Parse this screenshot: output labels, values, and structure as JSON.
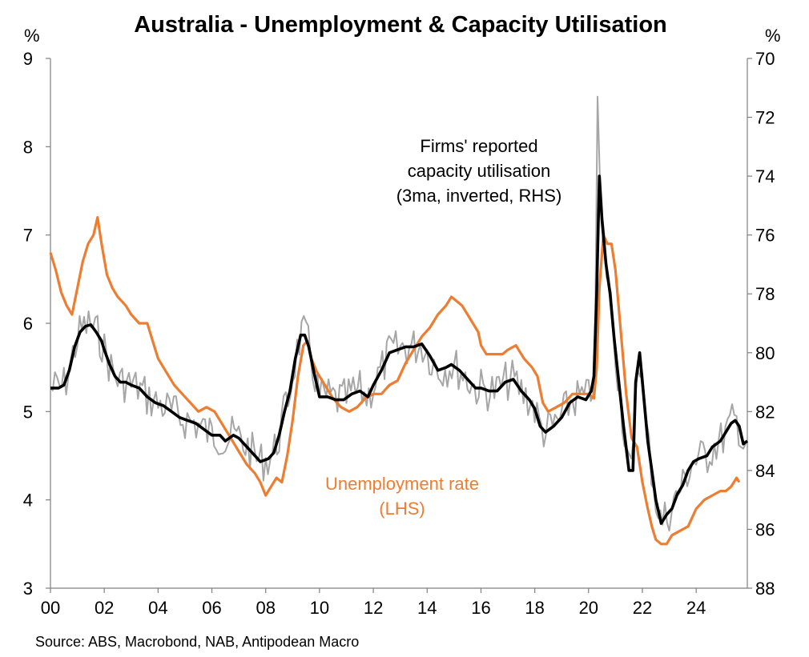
{
  "chart_data": {
    "type": "line",
    "title": "Australia - Unemployment & Capacity Utilisation",
    "left_unit": "%",
    "right_unit": "%",
    "source": "Source: ABS, Macrobond, NAB, Antipodean Macro",
    "x_ticks": [
      "00",
      "02",
      "04",
      "06",
      "08",
      "10",
      "12",
      "14",
      "16",
      "18",
      "20",
      "22",
      "24"
    ],
    "x_range": [
      2000,
      2025.9
    ],
    "left_axis": {
      "ylim": [
        3,
        9
      ],
      "ticks": [
        3,
        4,
        5,
        6,
        7,
        8,
        9
      ]
    },
    "right_axis": {
      "ylim": [
        70,
        88
      ],
      "inverted": true,
      "ticks": [
        70,
        72,
        74,
        76,
        78,
        80,
        82,
        84,
        86,
        88
      ]
    },
    "annotations": {
      "capacity_label": [
        "Firms' reported",
        "capacity utilisation",
        "(3ma, inverted, RHS)"
      ],
      "unemployment_label": [
        "Unemployment rate",
        "(LHS)"
      ]
    },
    "colors": {
      "unemployment": "#ED7D31",
      "capacity_3ma": "#000000",
      "capacity_monthly": "#A6A6A6"
    },
    "series": [
      {
        "name": "Unemployment rate",
        "axis": "left",
        "points": [
          [
            2000.0,
            6.8
          ],
          [
            2000.2,
            6.6
          ],
          [
            2000.4,
            6.35
          ],
          [
            2000.6,
            6.2
          ],
          [
            2000.8,
            6.1
          ],
          [
            2001.0,
            6.4
          ],
          [
            2001.2,
            6.7
          ],
          [
            2001.4,
            6.9
          ],
          [
            2001.6,
            7.0
          ],
          [
            2001.75,
            7.2
          ],
          [
            2001.9,
            6.9
          ],
          [
            2002.1,
            6.55
          ],
          [
            2002.3,
            6.4
          ],
          [
            2002.5,
            6.3
          ],
          [
            2002.8,
            6.2
          ],
          [
            2003.0,
            6.1
          ],
          [
            2003.3,
            6.0
          ],
          [
            2003.6,
            6.0
          ],
          [
            2003.8,
            5.8
          ],
          [
            2004.0,
            5.6
          ],
          [
            2004.3,
            5.45
          ],
          [
            2004.6,
            5.3
          ],
          [
            2004.9,
            5.2
          ],
          [
            2005.2,
            5.1
          ],
          [
            2005.5,
            5.0
          ],
          [
            2005.8,
            5.05
          ],
          [
            2006.1,
            5.0
          ],
          [
            2006.4,
            4.85
          ],
          [
            2006.7,
            4.7
          ],
          [
            2007.0,
            4.55
          ],
          [
            2007.3,
            4.4
          ],
          [
            2007.6,
            4.3
          ],
          [
            2007.8,
            4.2
          ],
          [
            2008.0,
            4.05
          ],
          [
            2008.2,
            4.15
          ],
          [
            2008.4,
            4.25
          ],
          [
            2008.6,
            4.2
          ],
          [
            2008.8,
            4.5
          ],
          [
            2009.0,
            4.9
          ],
          [
            2009.2,
            5.4
          ],
          [
            2009.4,
            5.75
          ],
          [
            2009.55,
            5.8
          ],
          [
            2009.7,
            5.6
          ],
          [
            2009.9,
            5.45
          ],
          [
            2010.2,
            5.3
          ],
          [
            2010.5,
            5.15
          ],
          [
            2010.8,
            5.05
          ],
          [
            2011.1,
            5.0
          ],
          [
            2011.4,
            5.05
          ],
          [
            2011.7,
            5.15
          ],
          [
            2012.0,
            5.2
          ],
          [
            2012.3,
            5.2
          ],
          [
            2012.6,
            5.3
          ],
          [
            2012.9,
            5.35
          ],
          [
            2013.2,
            5.55
          ],
          [
            2013.5,
            5.7
          ],
          [
            2013.8,
            5.85
          ],
          [
            2014.1,
            5.95
          ],
          [
            2014.4,
            6.1
          ],
          [
            2014.7,
            6.2
          ],
          [
            2014.9,
            6.3
          ],
          [
            2015.1,
            6.25
          ],
          [
            2015.3,
            6.2
          ],
          [
            2015.5,
            6.1
          ],
          [
            2015.7,
            6.0
          ],
          [
            2015.9,
            5.9
          ],
          [
            2016.0,
            5.75
          ],
          [
            2016.2,
            5.65
          ],
          [
            2016.5,
            5.65
          ],
          [
            2016.8,
            5.65
          ],
          [
            2017.0,
            5.7
          ],
          [
            2017.3,
            5.75
          ],
          [
            2017.6,
            5.6
          ],
          [
            2017.9,
            5.5
          ],
          [
            2018.1,
            5.4
          ],
          [
            2018.3,
            5.1
          ],
          [
            2018.5,
            5.0
          ],
          [
            2018.8,
            5.05
          ],
          [
            2019.1,
            5.1
          ],
          [
            2019.4,
            5.2
          ],
          [
            2019.7,
            5.2
          ],
          [
            2020.0,
            5.2
          ],
          [
            2020.2,
            5.15
          ],
          [
            2020.3,
            5.5
          ],
          [
            2020.4,
            6.4
          ],
          [
            2020.55,
            7.0
          ],
          [
            2020.7,
            6.9
          ],
          [
            2020.85,
            6.9
          ],
          [
            2021.0,
            6.6
          ],
          [
            2021.2,
            5.9
          ],
          [
            2021.4,
            5.2
          ],
          [
            2021.6,
            4.7
          ],
          [
            2021.8,
            4.6
          ],
          [
            2022.0,
            4.2
          ],
          [
            2022.2,
            3.9
          ],
          [
            2022.35,
            3.7
          ],
          [
            2022.5,
            3.55
          ],
          [
            2022.7,
            3.5
          ],
          [
            2022.9,
            3.5
          ],
          [
            2023.1,
            3.6
          ],
          [
            2023.4,
            3.65
          ],
          [
            2023.7,
            3.7
          ],
          [
            2024.0,
            3.9
          ],
          [
            2024.3,
            4.0
          ],
          [
            2024.6,
            4.05
          ],
          [
            2024.9,
            4.1
          ],
          [
            2025.1,
            4.1
          ],
          [
            2025.3,
            4.15
          ],
          [
            2025.5,
            4.25
          ],
          [
            2025.6,
            4.2
          ]
        ]
      },
      {
        "name": "Firms' reported capacity utilisation (3ma, inverted, RHS)",
        "axis": "right",
        "points": [
          [
            2000.0,
            81.2
          ],
          [
            2000.3,
            81.2
          ],
          [
            2000.5,
            81.1
          ],
          [
            2000.7,
            80.6
          ],
          [
            2000.9,
            79.8
          ],
          [
            2001.1,
            79.3
          ],
          [
            2001.3,
            79.1
          ],
          [
            2001.5,
            79.05
          ],
          [
            2001.7,
            79.3
          ],
          [
            2001.9,
            79.6
          ],
          [
            2002.0,
            79.9
          ],
          [
            2002.2,
            80.4
          ],
          [
            2002.4,
            80.8
          ],
          [
            2002.6,
            81.0
          ],
          [
            2002.8,
            81.0
          ],
          [
            2003.0,
            81.1
          ],
          [
            2003.3,
            81.2
          ],
          [
            2003.6,
            81.5
          ],
          [
            2003.9,
            81.7
          ],
          [
            2004.2,
            81.8
          ],
          [
            2004.5,
            82.0
          ],
          [
            2004.8,
            82.2
          ],
          [
            2005.1,
            82.3
          ],
          [
            2005.4,
            82.4
          ],
          [
            2005.7,
            82.6
          ],
          [
            2006.0,
            82.8
          ],
          [
            2006.3,
            82.8
          ],
          [
            2006.5,
            83.0
          ],
          [
            2006.8,
            82.8
          ],
          [
            2007.0,
            82.9
          ],
          [
            2007.3,
            83.2
          ],
          [
            2007.6,
            83.5
          ],
          [
            2007.8,
            83.7
          ],
          [
            2008.1,
            83.6
          ],
          [
            2008.3,
            83.4
          ],
          [
            2008.5,
            82.8
          ],
          [
            2008.7,
            82.0
          ],
          [
            2008.9,
            81.3
          ],
          [
            2009.1,
            80.2
          ],
          [
            2009.3,
            79.4
          ],
          [
            2009.45,
            79.4
          ],
          [
            2009.6,
            79.8
          ],
          [
            2009.8,
            80.7
          ],
          [
            2010.0,
            81.5
          ],
          [
            2010.3,
            81.5
          ],
          [
            2010.6,
            81.6
          ],
          [
            2010.9,
            81.6
          ],
          [
            2011.2,
            81.4
          ],
          [
            2011.5,
            81.3
          ],
          [
            2011.8,
            81.5
          ],
          [
            2012.0,
            81.1
          ],
          [
            2012.3,
            80.6
          ],
          [
            2012.6,
            80.0
          ],
          [
            2012.9,
            79.9
          ],
          [
            2013.2,
            79.8
          ],
          [
            2013.5,
            79.8
          ],
          [
            2013.8,
            79.7
          ],
          [
            2014.1,
            80.1
          ],
          [
            2014.4,
            80.6
          ],
          [
            2014.7,
            80.5
          ],
          [
            2014.9,
            80.4
          ],
          [
            2015.2,
            80.6
          ],
          [
            2015.5,
            80.9
          ],
          [
            2015.8,
            81.2
          ],
          [
            2016.0,
            81.2
          ],
          [
            2016.3,
            81.3
          ],
          [
            2016.6,
            81.3
          ],
          [
            2016.9,
            81.0
          ],
          [
            2017.2,
            80.9
          ],
          [
            2017.5,
            81.3
          ],
          [
            2017.8,
            81.6
          ],
          [
            2018.0,
            81.9
          ],
          [
            2018.2,
            82.5
          ],
          [
            2018.4,
            82.7
          ],
          [
            2018.7,
            82.5
          ],
          [
            2019.0,
            82.2
          ],
          [
            2019.3,
            81.7
          ],
          [
            2019.6,
            81.5
          ],
          [
            2019.9,
            81.6
          ],
          [
            2020.1,
            81.3
          ],
          [
            2020.2,
            80.8
          ],
          [
            2020.3,
            78.0
          ],
          [
            2020.4,
            74.0
          ],
          [
            2020.5,
            75.5
          ],
          [
            2020.65,
            77.0
          ],
          [
            2020.8,
            78.0
          ],
          [
            2020.95,
            79.5
          ],
          [
            2021.1,
            80.8
          ],
          [
            2021.3,
            82.5
          ],
          [
            2021.5,
            84.0
          ],
          [
            2021.65,
            84.0
          ],
          [
            2021.75,
            81.0
          ],
          [
            2021.9,
            80.0
          ],
          [
            2022.05,
            81.5
          ],
          [
            2022.2,
            83.0
          ],
          [
            2022.35,
            84.0
          ],
          [
            2022.5,
            85.0
          ],
          [
            2022.7,
            85.8
          ],
          [
            2022.9,
            85.5
          ],
          [
            2023.1,
            85.3
          ],
          [
            2023.3,
            84.8
          ],
          [
            2023.5,
            84.5
          ],
          [
            2023.7,
            84.0
          ],
          [
            2023.9,
            83.7
          ],
          [
            2024.1,
            83.6
          ],
          [
            2024.4,
            83.5
          ],
          [
            2024.6,
            83.2
          ],
          [
            2024.9,
            83.0
          ],
          [
            2025.1,
            82.7
          ],
          [
            2025.3,
            82.4
          ],
          [
            2025.45,
            82.3
          ],
          [
            2025.6,
            82.5
          ],
          [
            2025.75,
            83.1
          ],
          [
            2025.9,
            83.0
          ]
        ]
      }
    ]
  }
}
